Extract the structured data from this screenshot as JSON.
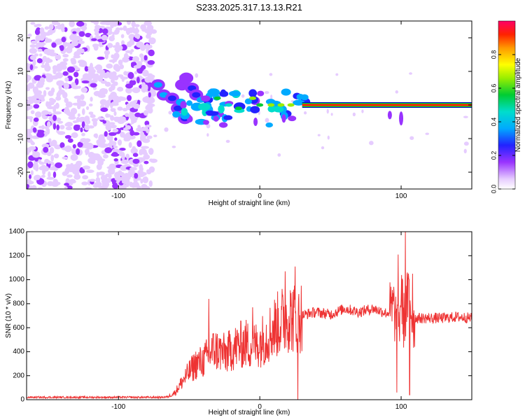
{
  "title": "S233.2025.317.13.13.R21",
  "chart_data": [
    {
      "type": "heatmap",
      "name": "spectrogram",
      "xlabel": "Height of straight line (km)",
      "ylabel": "Frequency (Hz)",
      "xlim": [
        -165,
        150
      ],
      "ylim": [
        -25,
        25
      ],
      "xticks": [
        -100,
        0,
        100
      ],
      "yticks": [
        -20,
        -10,
        0,
        10,
        20
      ],
      "colorbar": {
        "label": "Normalized spectral amplitude",
        "range": [
          0,
          1
        ],
        "ticks": [
          0.0,
          0.2,
          0.4,
          0.6,
          0.8
        ],
        "tick_labels": [
          "0.0",
          "0.2",
          "0.4",
          "0.6",
          "0.8"
        ]
      },
      "regions": [
        {
          "description": "diffuse noise",
          "x": [
            -165,
            -75
          ],
          "freq": [
            -25,
            25
          ],
          "amplitude": [
            0.05,
            0.3
          ]
        },
        {
          "description": "rising blobs",
          "x": [
            -75,
            -50
          ],
          "freq": [
            0,
            10
          ],
          "amplitude": [
            0.2,
            0.5
          ]
        },
        {
          "description": "scattered clumps",
          "x": [
            -60,
            30
          ],
          "freq": [
            -8,
            5
          ],
          "amplitude": [
            0.1,
            0.6
          ]
        },
        {
          "description": "steady tone",
          "x": [
            30,
            150
          ],
          "freq": [
            0,
            0
          ],
          "amplitude": [
            0.85,
            0.95
          ]
        }
      ]
    },
    {
      "type": "line",
      "name": "snr",
      "xlabel": "Height of straight line (km)",
      "ylabel": "SNR (10 * v/v)",
      "xlim": [
        -165,
        150
      ],
      "ylim": [
        0,
        1400
      ],
      "xticks": [
        -100,
        0,
        100
      ],
      "yticks": [
        0,
        200,
        400,
        600,
        800,
        1000,
        1200,
        1400
      ],
      "color": "#ee3333",
      "series": [
        {
          "name": "SNR",
          "x": [
            -165,
            -150,
            -120,
            -90,
            -70,
            -65,
            -60,
            -55,
            -50,
            -45,
            -40,
            -36,
            -32,
            -28,
            -24,
            -20,
            -15,
            -10,
            -5,
            0,
            5,
            10,
            15,
            20,
            25,
            30,
            35,
            40,
            50,
            60,
            70,
            80,
            90,
            95,
            98,
            100,
            102,
            104,
            106,
            108,
            110,
            120,
            130,
            140,
            150
          ],
          "values": [
            20,
            20,
            20,
            20,
            20,
            25,
            60,
            150,
            230,
            300,
            320,
            380,
            420,
            400,
            380,
            420,
            450,
            470,
            440,
            480,
            530,
            600,
            650,
            700,
            680,
            700,
            720,
            730,
            710,
            760,
            730,
            760,
            720,
            760,
            500,
            900,
            650,
            800,
            900,
            650,
            680,
            680,
            680,
            690,
            680
          ]
        }
      ],
      "spikes": [
        {
          "x": -36,
          "value": 840
        },
        {
          "x": -5,
          "value": 770
        },
        {
          "x": 18,
          "value": 1070
        },
        {
          "x": 25,
          "value": 1110
        },
        {
          "x": 27,
          "value": 0
        },
        {
          "x": 97,
          "value": 60
        },
        {
          "x": 98,
          "value": 1210
        },
        {
          "x": 103,
          "value": 1400
        },
        {
          "x": 106,
          "value": 40
        },
        {
          "x": 108,
          "value": 1050
        }
      ]
    }
  ]
}
